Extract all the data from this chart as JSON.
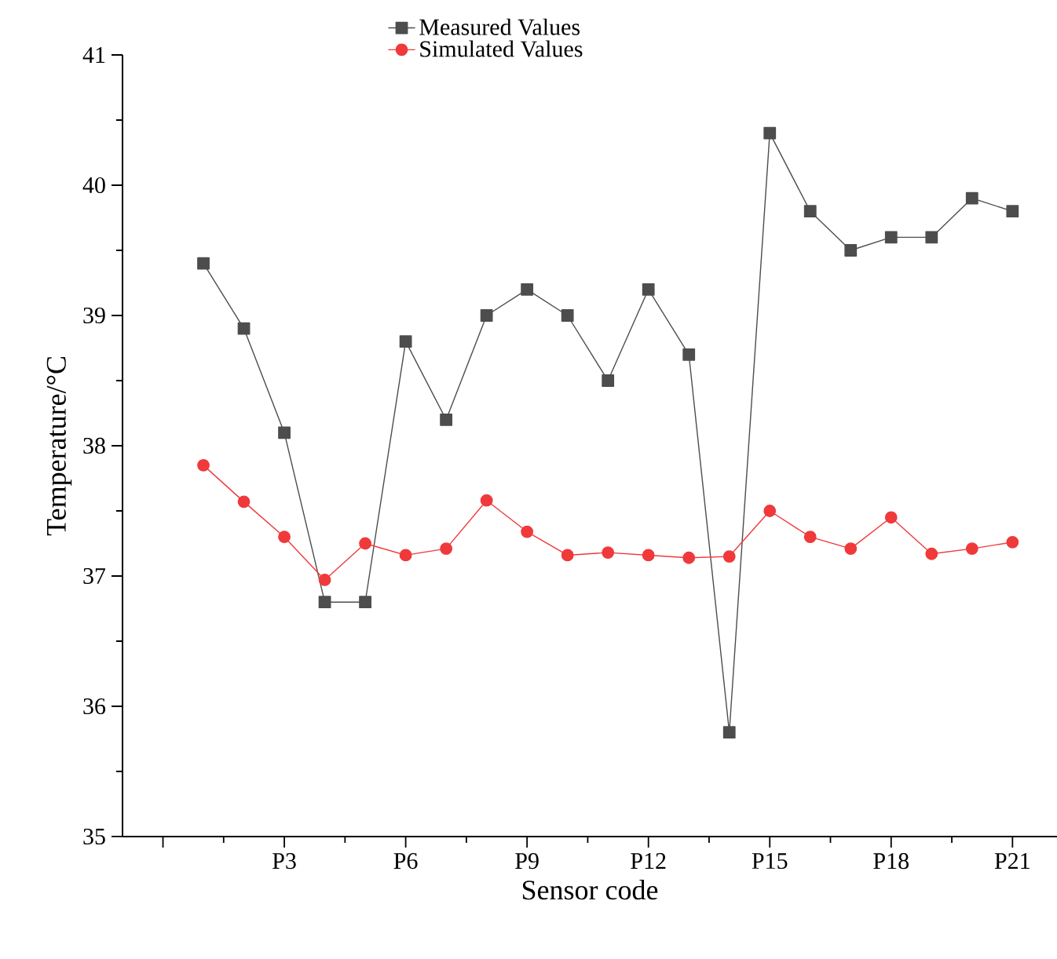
{
  "chart_data": {
    "type": "line",
    "xlabel": "Sensor code",
    "ylabel": "Temperature/°C",
    "categories": [
      null,
      null,
      "P3",
      null,
      null,
      "P6",
      null,
      null,
      "P9",
      null,
      null,
      "P12",
      null,
      null,
      "P15",
      null,
      null,
      "P18",
      null,
      null,
      "P21"
    ],
    "series": [
      {
        "name": "Measured Values",
        "color": "#4d4d4d",
        "marker": "square",
        "values": [
          39.4,
          38.9,
          38.1,
          36.8,
          36.8,
          38.8,
          38.2,
          39.0,
          39.2,
          39.0,
          38.5,
          39.2,
          38.7,
          35.8,
          40.4,
          39.8,
          39.5,
          39.6,
          39.6,
          39.9,
          39.8
        ]
      },
      {
        "name": "Simulated Values",
        "color": "#f0393b",
        "marker": "circle",
        "values": [
          37.85,
          37.57,
          37.3,
          36.97,
          37.25,
          37.16,
          37.21,
          37.58,
          37.34,
          37.16,
          37.18,
          37.16,
          37.14,
          37.15,
          37.5,
          37.3,
          37.21,
          37.45,
          37.17,
          37.21,
          37.26
        ]
      }
    ],
    "ylim": [
      35,
      41
    ],
    "yticks": [
      35,
      36,
      37,
      38,
      39,
      40,
      41
    ],
    "grid": false,
    "legend": "top",
    "line_style": "solid"
  }
}
